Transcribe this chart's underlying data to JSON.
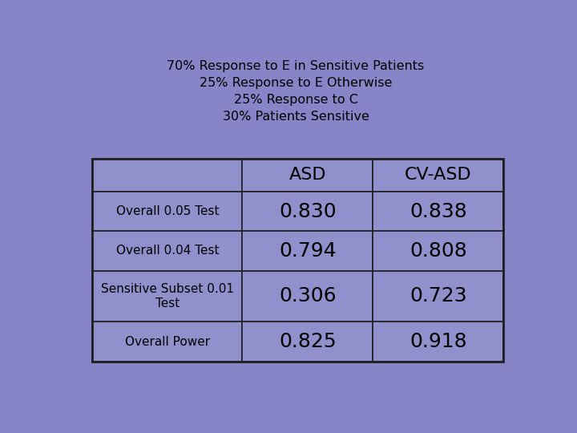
{
  "title_lines": [
    "70% Response to E in Sensitive Patients",
    "25% Response to E Otherwise",
    "25% Response to C",
    "30% Patients Sensitive"
  ],
  "col_headers": [
    "ASD",
    "CV-ASD"
  ],
  "row_labels": [
    "",
    "Overall 0.05 Test",
    "Overall 0.04 Test",
    "Sensitive Subset 0.01\nTest",
    "Overall Power"
  ],
  "table_data": [
    [
      "",
      ""
    ],
    [
      "0.830",
      "0.838"
    ],
    [
      "0.794",
      "0.808"
    ],
    [
      "0.306",
      "0.723"
    ],
    [
      "0.825",
      "0.918"
    ]
  ],
  "bg_color": "#8884c8",
  "cell_color": "#9090cc",
  "border_color": "#202020",
  "title_fontsize": 11.5,
  "header_fontsize": 16,
  "data_fontsize": 18,
  "row_label_fontsize": 11,
  "fig_width": 7.2,
  "fig_height": 5.4
}
